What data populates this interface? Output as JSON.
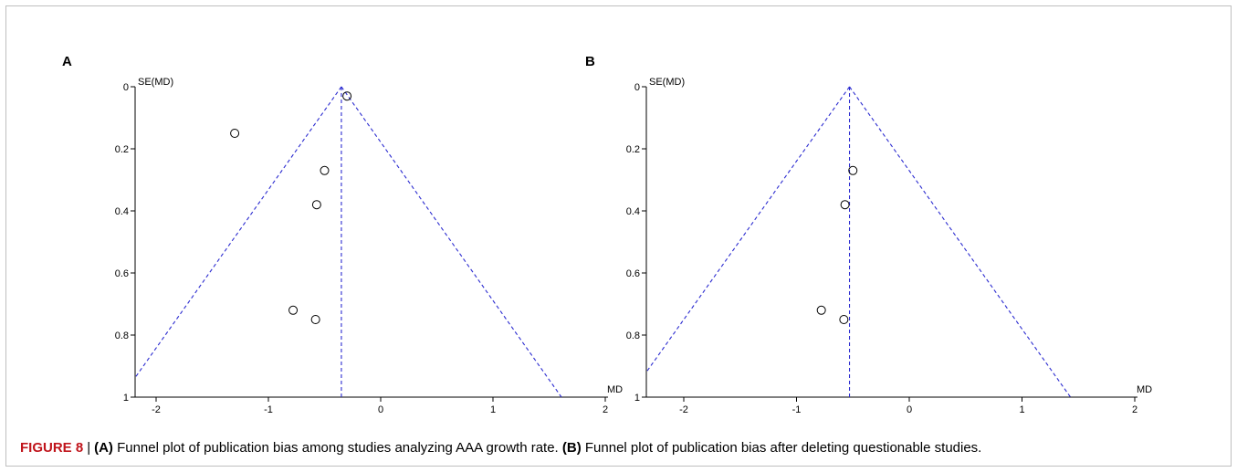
{
  "chart_data": [
    {
      "type": "scatter",
      "panel": "A",
      "xlabel": "MD",
      "ylabel": "SE(MD)",
      "xlim": [
        -2,
        2
      ],
      "ylim": [
        0,
        1
      ],
      "y_reversed": true,
      "xticks": [
        "-2",
        "-1",
        "0",
        "1",
        "2"
      ],
      "yticks": [
        "0",
        "0.2",
        "0.4",
        "0.6",
        "0.8",
        "1"
      ],
      "pooled_md": -0.35,
      "points": [
        {
          "x": -0.3,
          "y": 0.03
        },
        {
          "x": -1.3,
          "y": 0.15
        },
        {
          "x": -0.5,
          "y": 0.27
        },
        {
          "x": -0.57,
          "y": 0.38
        },
        {
          "x": -0.78,
          "y": 0.72
        },
        {
          "x": -0.58,
          "y": 0.75
        }
      ]
    },
    {
      "type": "scatter",
      "panel": "B",
      "xlabel": "MD",
      "ylabel": "SE(MD)",
      "xlim": [
        -2,
        2
      ],
      "ylim": [
        0,
        1
      ],
      "y_reversed": true,
      "xticks": [
        "-2",
        "-1",
        "0",
        "1",
        "2"
      ],
      "yticks": [
        "0",
        "0.2",
        "0.4",
        "0.6",
        "0.8",
        "1"
      ],
      "pooled_md": -0.53,
      "points": [
        {
          "x": -0.5,
          "y": 0.27
        },
        {
          "x": -0.57,
          "y": 0.38
        },
        {
          "x": -0.78,
          "y": 0.72
        },
        {
          "x": -0.58,
          "y": 0.75
        }
      ]
    }
  ],
  "caption": {
    "figure_label": "FIGURE 8",
    "separator": "|",
    "part_a_label": "(A)",
    "part_a_text": " Funnel plot of publication bias among studies analyzing AAA growth rate. ",
    "part_b_label": "(B)",
    "part_b_text": " Funnel plot of publication bias after deleting questionable studies."
  },
  "colors": {
    "funnel_lines": "#2b2bd0",
    "axes": "#000000",
    "figure_label": "#c0141b"
  }
}
